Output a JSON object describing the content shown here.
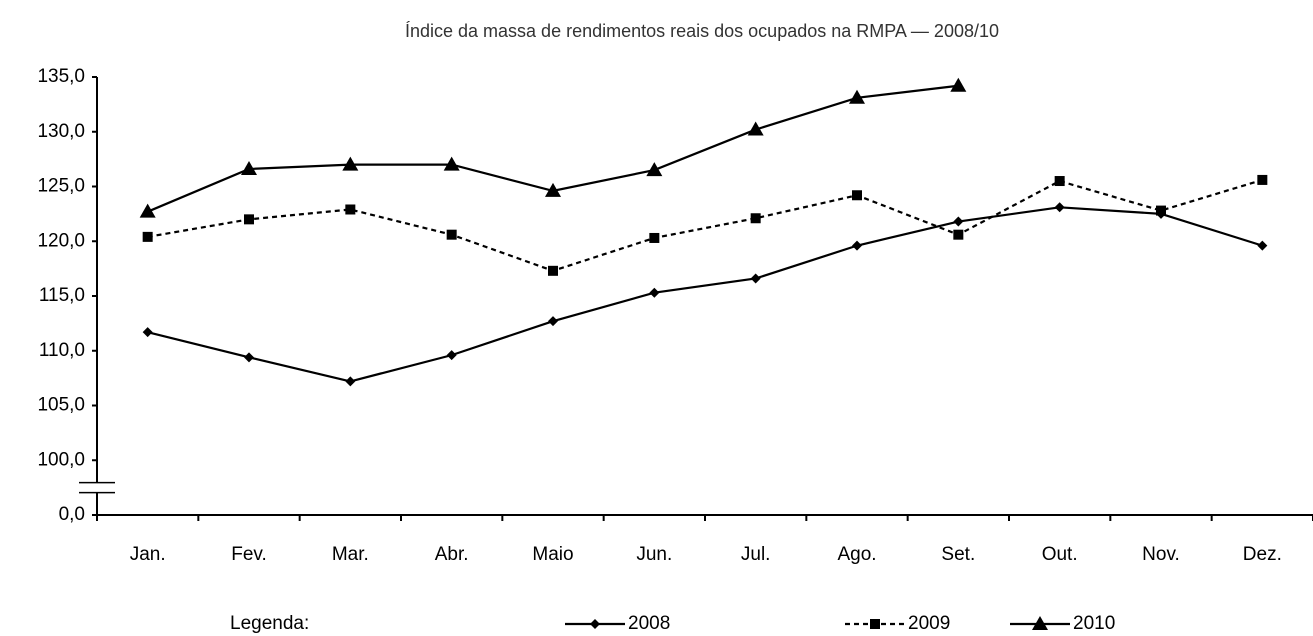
{
  "chart_data": {
    "type": "line",
    "title": "Índice da massa de rendimentos reais dos ocupados na RMPA — 2008/10",
    "categories": [
      "Jan.",
      "Fev.",
      "Mar.",
      "Abr.",
      "Maio",
      "Jun.",
      "Jul.",
      "Ago.",
      "Set.",
      "Out.",
      "Nov.",
      "Dez."
    ],
    "series": [
      {
        "name": "2008",
        "color": "#000000",
        "dash": false,
        "marker": "diamond",
        "values": [
          111.7,
          109.4,
          107.2,
          109.6,
          112.7,
          115.3,
          116.6,
          119.6,
          121.8,
          123.1,
          122.5,
          119.6
        ]
      },
      {
        "name": "2009",
        "color": "#000000",
        "dash": true,
        "marker": "square",
        "values": [
          120.4,
          122.0,
          122.9,
          120.6,
          117.3,
          120.3,
          122.1,
          124.2,
          120.6,
          125.5,
          122.8,
          125.6
        ]
      },
      {
        "name": "2010",
        "color": "#000000",
        "dash": false,
        "marker": "triangle",
        "values": [
          122.7,
          126.6,
          127.0,
          127.0,
          124.6,
          126.5,
          130.2,
          133.1,
          134.2,
          null,
          null,
          null
        ]
      }
    ],
    "ylim": [
      0,
      135
    ],
    "yticks": [
      {
        "value": 0,
        "label": "0,0"
      },
      {
        "value": 100,
        "label": "100,0"
      },
      {
        "value": 105,
        "label": "105,0"
      },
      {
        "value": 110,
        "label": "110,0"
      },
      {
        "value": 115,
        "label": "115,0"
      },
      {
        "value": 120,
        "label": "120,0"
      },
      {
        "value": 125,
        "label": "125,0"
      },
      {
        "value": 130,
        "label": "130,0"
      },
      {
        "value": 135,
        "label": "135,0"
      }
    ],
    "axis_break": true,
    "grid": false,
    "legend_label": "Legenda:",
    "legend": "bottom"
  }
}
